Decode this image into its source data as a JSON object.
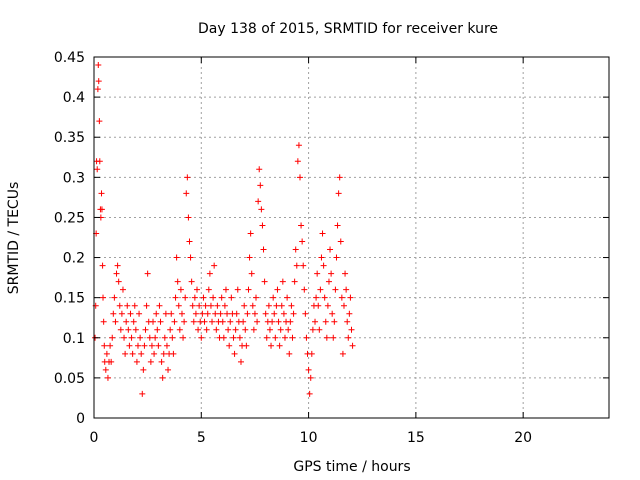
{
  "chart_data": {
    "type": "scatter",
    "title": "Day 138 of 2015, SRMTID for receiver kure",
    "xlabel": "GPS time / hours",
    "ylabel": "SRMTID / TECUs",
    "xlim": [
      0,
      24
    ],
    "ylim": [
      0,
      0.45
    ],
    "xticks": [
      0,
      5,
      10,
      15,
      20
    ],
    "xtick_labels": [
      "0",
      "5",
      "10",
      "15",
      "20"
    ],
    "yticks": [
      0,
      0.05,
      0.1,
      0.15,
      0.2,
      0.25,
      0.3,
      0.35,
      0.4,
      0.45
    ],
    "ytick_labels": [
      "0",
      "0.05",
      "0.1",
      "0.15",
      "0.2",
      "0.25",
      "0.3",
      "0.35",
      "0.4",
      "0.45"
    ],
    "grid": true,
    "marker": "+",
    "color": "#ff0000",
    "series": [
      {
        "name": "SRMTID",
        "points": [
          [
            0.05,
            0.1
          ],
          [
            0.08,
            0.14
          ],
          [
            0.1,
            0.23
          ],
          [
            0.12,
            0.32
          ],
          [
            0.15,
            0.31
          ],
          [
            0.18,
            0.41
          ],
          [
            0.2,
            0.44
          ],
          [
            0.22,
            0.42
          ],
          [
            0.25,
            0.37
          ],
          [
            0.27,
            0.32
          ],
          [
            0.3,
            0.26
          ],
          [
            0.32,
            0.25
          ],
          [
            0.35,
            0.28
          ],
          [
            0.37,
            0.26
          ],
          [
            0.4,
            0.19
          ],
          [
            0.42,
            0.15
          ],
          [
            0.45,
            0.12
          ],
          [
            0.48,
            0.09
          ],
          [
            0.5,
            0.07
          ],
          [
            0.55,
            0.06
          ],
          [
            0.6,
            0.08
          ],
          [
            0.65,
            0.05
          ],
          [
            0.7,
            0.07
          ],
          [
            0.75,
            0.09
          ],
          [
            0.8,
            0.07
          ],
          [
            0.85,
            0.1
          ],
          [
            0.9,
            0.13
          ],
          [
            0.95,
            0.15
          ],
          [
            1.0,
            0.12
          ],
          [
            1.05,
            0.18
          ],
          [
            1.1,
            0.19
          ],
          [
            1.15,
            0.17
          ],
          [
            1.2,
            0.14
          ],
          [
            1.25,
            0.11
          ],
          [
            1.3,
            0.13
          ],
          [
            1.35,
            0.16
          ],
          [
            1.4,
            0.1
          ],
          [
            1.45,
            0.08
          ],
          [
            1.5,
            0.12
          ],
          [
            1.55,
            0.14
          ],
          [
            1.6,
            0.11
          ],
          [
            1.65,
            0.09
          ],
          [
            1.7,
            0.13
          ],
          [
            1.75,
            0.1
          ],
          [
            1.8,
            0.08
          ],
          [
            1.85,
            0.12
          ],
          [
            1.9,
            0.14
          ],
          [
            1.95,
            0.11
          ],
          [
            2.0,
            0.07
          ],
          [
            2.05,
            0.09
          ],
          [
            2.1,
            0.13
          ],
          [
            2.15,
            0.1
          ],
          [
            2.2,
            0.08
          ],
          [
            2.25,
            0.03
          ],
          [
            2.3,
            0.06
          ],
          [
            2.35,
            0.09
          ],
          [
            2.4,
            0.11
          ],
          [
            2.45,
            0.14
          ],
          [
            2.5,
            0.18
          ],
          [
            2.55,
            0.12
          ],
          [
            2.6,
            0.1
          ],
          [
            2.65,
            0.07
          ],
          [
            2.7,
            0.09
          ],
          [
            2.75,
            0.12
          ],
          [
            2.8,
            0.08
          ],
          [
            2.85,
            0.1
          ],
          [
            2.9,
            0.13
          ],
          [
            2.95,
            0.11
          ],
          [
            3.0,
            0.09
          ],
          [
            3.05,
            0.14
          ],
          [
            3.1,
            0.12
          ],
          [
            3.15,
            0.07
          ],
          [
            3.2,
            0.05
          ],
          [
            3.25,
            0.08
          ],
          [
            3.3,
            0.1
          ],
          [
            3.35,
            0.13
          ],
          [
            3.4,
            0.09
          ],
          [
            3.45,
            0.06
          ],
          [
            3.5,
            0.08
          ],
          [
            3.55,
            0.11
          ],
          [
            3.6,
            0.13
          ],
          [
            3.65,
            0.1
          ],
          [
            3.7,
            0.08
          ],
          [
            3.75,
            0.12
          ],
          [
            3.8,
            0.15
          ],
          [
            3.85,
            0.2
          ],
          [
            3.9,
            0.17
          ],
          [
            3.95,
            0.14
          ],
          [
            4.0,
            0.11
          ],
          [
            4.05,
            0.16
          ],
          [
            4.1,
            0.13
          ],
          [
            4.15,
            0.1
          ],
          [
            4.2,
            0.12
          ],
          [
            4.25,
            0.15
          ],
          [
            4.3,
            0.28
          ],
          [
            4.35,
            0.3
          ],
          [
            4.4,
            0.25
          ],
          [
            4.45,
            0.22
          ],
          [
            4.5,
            0.2
          ],
          [
            4.55,
            0.17
          ],
          [
            4.6,
            0.14
          ],
          [
            4.65,
            0.12
          ],
          [
            4.7,
            0.15
          ],
          [
            4.75,
            0.13
          ],
          [
            4.8,
            0.16
          ],
          [
            4.85,
            0.11
          ],
          [
            4.9,
            0.14
          ],
          [
            4.95,
            0.12
          ],
          [
            5.0,
            0.1
          ],
          [
            5.05,
            0.13
          ],
          [
            5.1,
            0.15
          ],
          [
            5.15,
            0.12
          ],
          [
            5.2,
            0.14
          ],
          [
            5.25,
            0.11
          ],
          [
            5.3,
            0.13
          ],
          [
            5.35,
            0.16
          ],
          [
            5.4,
            0.18
          ],
          [
            5.45,
            0.14
          ],
          [
            5.5,
            0.12
          ],
          [
            5.55,
            0.15
          ],
          [
            5.6,
            0.19
          ],
          [
            5.65,
            0.13
          ],
          [
            5.7,
            0.11
          ],
          [
            5.75,
            0.14
          ],
          [
            5.8,
            0.12
          ],
          [
            5.85,
            0.1
          ],
          [
            5.9,
            0.13
          ],
          [
            5.95,
            0.15
          ],
          [
            6.0,
            0.12
          ],
          [
            6.05,
            0.1
          ],
          [
            6.1,
            0.14
          ],
          [
            6.15,
            0.16
          ],
          [
            6.2,
            0.13
          ],
          [
            6.25,
            0.11
          ],
          [
            6.3,
            0.09
          ],
          [
            6.35,
            0.12
          ],
          [
            6.4,
            0.15
          ],
          [
            6.45,
            0.13
          ],
          [
            6.5,
            0.1
          ],
          [
            6.55,
            0.08
          ],
          [
            6.6,
            0.11
          ],
          [
            6.65,
            0.13
          ],
          [
            6.7,
            0.16
          ],
          [
            6.75,
            0.12
          ],
          [
            6.8,
            0.1
          ],
          [
            6.85,
            0.07
          ],
          [
            6.9,
            0.09
          ],
          [
            6.95,
            0.12
          ],
          [
            7.0,
            0.14
          ],
          [
            7.05,
            0.11
          ],
          [
            7.1,
            0.09
          ],
          [
            7.15,
            0.13
          ],
          [
            7.2,
            0.16
          ],
          [
            7.25,
            0.2
          ],
          [
            7.3,
            0.23
          ],
          [
            7.35,
            0.18
          ],
          [
            7.4,
            0.14
          ],
          [
            7.45,
            0.11
          ],
          [
            7.5,
            0.13
          ],
          [
            7.55,
            0.15
          ],
          [
            7.6,
            0.12
          ],
          [
            7.65,
            0.27
          ],
          [
            7.7,
            0.31
          ],
          [
            7.75,
            0.29
          ],
          [
            7.8,
            0.26
          ],
          [
            7.85,
            0.24
          ],
          [
            7.9,
            0.21
          ],
          [
            7.95,
            0.17
          ],
          [
            8.0,
            0.13
          ],
          [
            8.05,
            0.1
          ],
          [
            8.1,
            0.12
          ],
          [
            8.15,
            0.14
          ],
          [
            8.2,
            0.11
          ],
          [
            8.25,
            0.09
          ],
          [
            8.3,
            0.12
          ],
          [
            8.35,
            0.15
          ],
          [
            8.4,
            0.13
          ],
          [
            8.45,
            0.1
          ],
          [
            8.5,
            0.14
          ],
          [
            8.55,
            0.16
          ],
          [
            8.6,
            0.12
          ],
          [
            8.65,
            0.09
          ],
          [
            8.7,
            0.11
          ],
          [
            8.75,
            0.14
          ],
          [
            8.8,
            0.17
          ],
          [
            8.85,
            0.13
          ],
          [
            8.9,
            0.1
          ],
          [
            8.95,
            0.12
          ],
          [
            9.0,
            0.15
          ],
          [
            9.05,
            0.11
          ],
          [
            9.1,
            0.08
          ],
          [
            9.15,
            0.12
          ],
          [
            9.2,
            0.14
          ],
          [
            9.25,
            0.1
          ],
          [
            9.3,
            0.13
          ],
          [
            9.35,
            0.17
          ],
          [
            9.4,
            0.21
          ],
          [
            9.45,
            0.19
          ],
          [
            9.5,
            0.32
          ],
          [
            9.55,
            0.34
          ],
          [
            9.6,
            0.3
          ],
          [
            9.65,
            0.24
          ],
          [
            9.7,
            0.22
          ],
          [
            9.75,
            0.19
          ],
          [
            9.8,
            0.16
          ],
          [
            9.85,
            0.13
          ],
          [
            9.9,
            0.1
          ],
          [
            9.95,
            0.08
          ],
          [
            10.0,
            0.06
          ],
          [
            10.05,
            0.03
          ],
          [
            10.1,
            0.05
          ],
          [
            10.15,
            0.08
          ],
          [
            10.2,
            0.11
          ],
          [
            10.25,
            0.14
          ],
          [
            10.3,
            0.12
          ],
          [
            10.35,
            0.15
          ],
          [
            10.4,
            0.18
          ],
          [
            10.45,
            0.14
          ],
          [
            10.5,
            0.11
          ],
          [
            10.55,
            0.16
          ],
          [
            10.6,
            0.2
          ],
          [
            10.65,
            0.23
          ],
          [
            10.7,
            0.19
          ],
          [
            10.75,
            0.15
          ],
          [
            10.8,
            0.12
          ],
          [
            10.85,
            0.1
          ],
          [
            10.9,
            0.14
          ],
          [
            10.95,
            0.17
          ],
          [
            11.0,
            0.21
          ],
          [
            11.05,
            0.18
          ],
          [
            11.1,
            0.13
          ],
          [
            11.15,
            0.1
          ],
          [
            11.2,
            0.12
          ],
          [
            11.25,
            0.16
          ],
          [
            11.3,
            0.2
          ],
          [
            11.35,
            0.24
          ],
          [
            11.4,
            0.28
          ],
          [
            11.45,
            0.3
          ],
          [
            11.5,
            0.22
          ],
          [
            11.55,
            0.15
          ],
          [
            11.6,
            0.08
          ],
          [
            11.65,
            0.14
          ],
          [
            11.7,
            0.18
          ],
          [
            11.75,
            0.16
          ],
          [
            11.8,
            0.12
          ],
          [
            11.85,
            0.1
          ],
          [
            11.9,
            0.13
          ],
          [
            11.95,
            0.15
          ],
          [
            12.0,
            0.11
          ],
          [
            12.05,
            0.09
          ]
        ]
      }
    ]
  }
}
